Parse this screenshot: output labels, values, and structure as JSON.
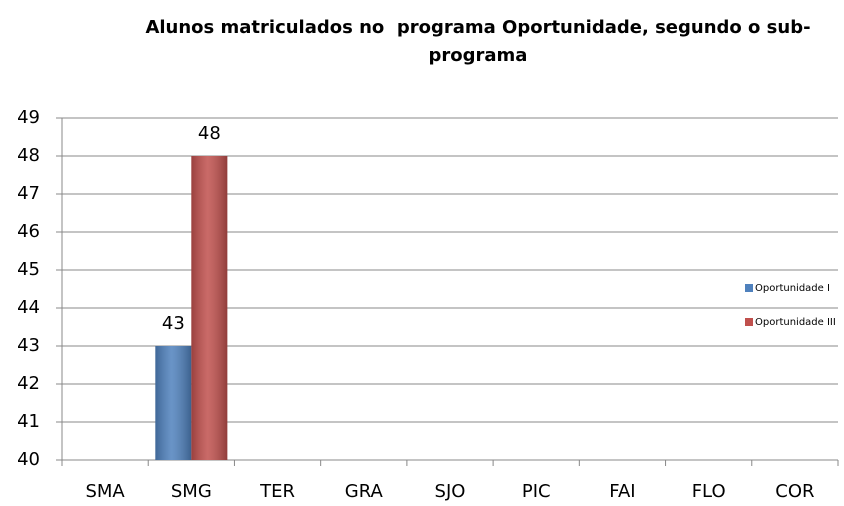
{
  "chart_data": {
    "type": "bar",
    "title": "Alunos matriculados no  programa Oportunidade, segundo o sub-programa",
    "categories": [
      "SMA",
      "SMG",
      "TER",
      "GRA",
      "SJO",
      "PIC",
      "FAI",
      "FLO",
      "COR"
    ],
    "series": [
      {
        "name": "Oportunidade I",
        "color": "#4f81bd",
        "values": [
          null,
          43,
          null,
          null,
          null,
          null,
          null,
          null,
          null
        ]
      },
      {
        "name": "Oportunidade III",
        "color": "#c0504d",
        "values": [
          null,
          48,
          null,
          null,
          null,
          null,
          null,
          null,
          null
        ]
      }
    ],
    "ylim": [
      40,
      49
    ],
    "yticks": [
      40,
      41,
      42,
      43,
      44,
      45,
      46,
      47,
      48,
      49
    ],
    "grid": true,
    "legend": "right"
  }
}
